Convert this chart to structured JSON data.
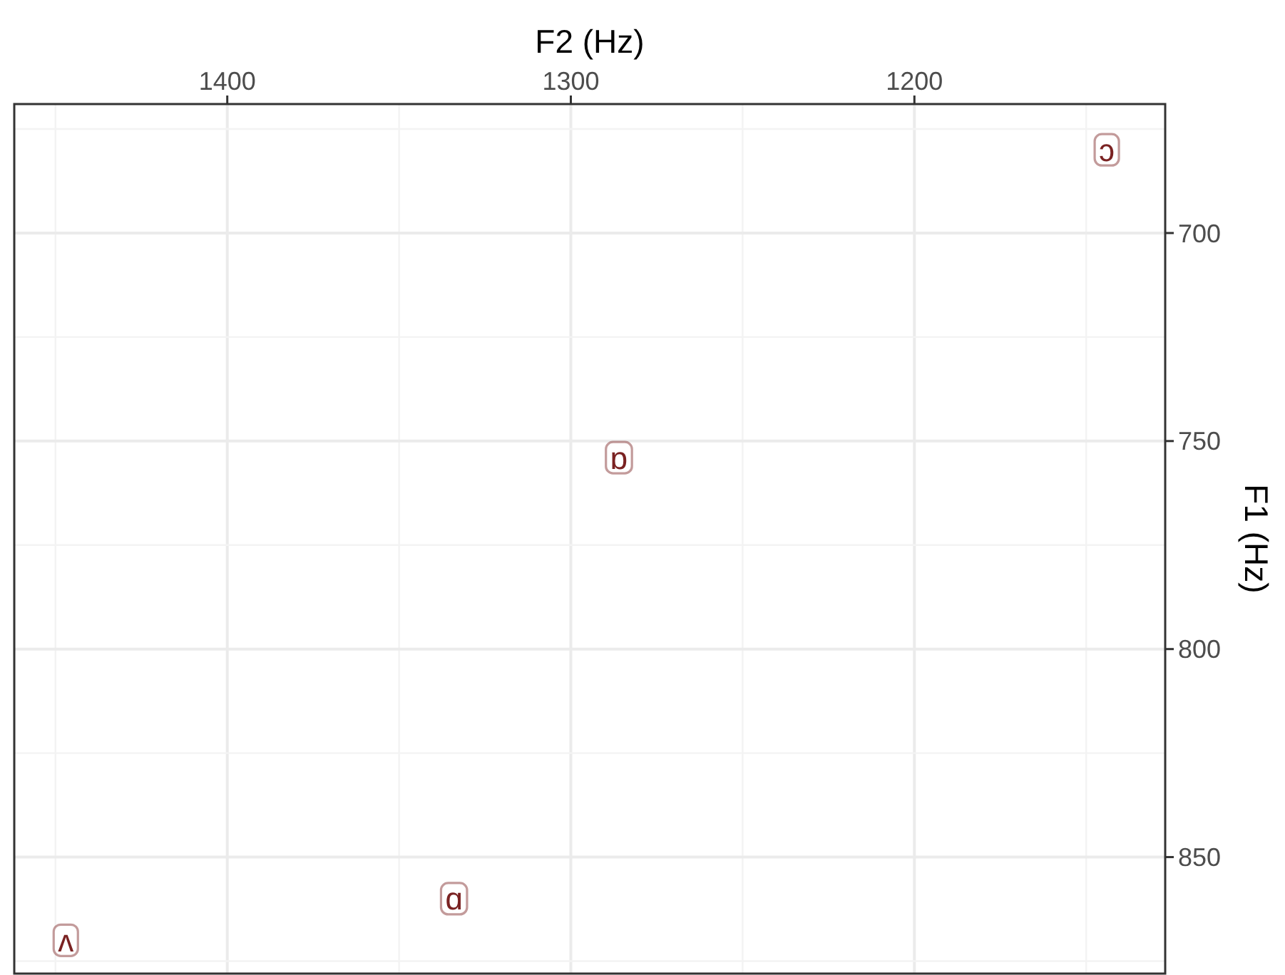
{
  "chart_data": {
    "type": "scatter",
    "xlabel": "F2 (Hz)",
    "ylabel": "F1 (Hz)",
    "xlim": [
      1462,
      1127
    ],
    "xticks": [
      {
        "value": 1450,
        "label": null
      },
      1400,
      {
        "value": 1350,
        "label": null
      },
      1300,
      {
        "value": 1250,
        "label": null
      },
      1200,
      {
        "value": 1150,
        "label": null
      }
    ],
    "ylim": [
      878,
      669
    ],
    "yticks": [
      {
        "value": 675,
        "label": null
      },
      700,
      {
        "value": 725,
        "label": null
      },
      750,
      {
        "value": 775,
        "label": null
      },
      800,
      {
        "value": 825,
        "label": null
      },
      850,
      {
        "value": 875,
        "label": null
      }
    ],
    "grid": true,
    "marker": "square",
    "color": "#7a2222",
    "x": [
      1144,
      1286,
      1334,
      1447
    ],
    "values": [
      680,
      754,
      860,
      870
    ],
    "value_labels": [
      "ɔ",
      "ɒ",
      "ɑ",
      "ʌ"
    ]
  }
}
